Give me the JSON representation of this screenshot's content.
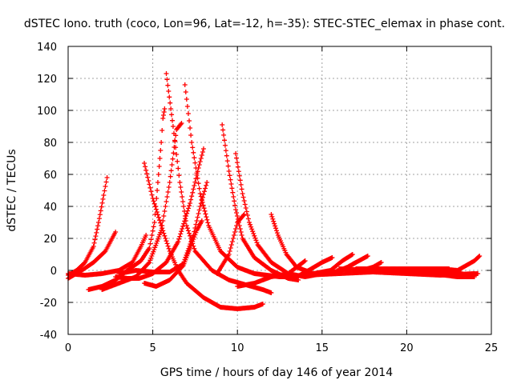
{
  "chart_data": {
    "type": "scatter",
    "title": "dSTEC Iono. truth (coco, Lon=96, Lat=-12, h=-35): STEC-STEC_elemax in phase cont.",
    "xlabel": "GPS time / hours of day 146 of year 2014",
    "ylabel": "dSTEC  / TECUs",
    "xlim": [
      0,
      25
    ],
    "ylim": [
      -40,
      140
    ],
    "xticks": [
      0,
      5,
      10,
      15,
      20,
      25
    ],
    "yticks": [
      -40,
      -20,
      0,
      20,
      40,
      60,
      80,
      100,
      120,
      140
    ],
    "grid": true,
    "legend": "none",
    "marker": "plus",
    "series_color": "#ff0000",
    "series": [
      {
        "points": [
          [
            0,
            -3
          ],
          [
            0.5,
            0
          ],
          [
            1,
            5
          ],
          [
            1.5,
            15
          ],
          [
            1.8,
            30
          ],
          [
            2.1,
            47
          ],
          [
            2.3,
            58
          ]
        ]
      },
      {
        "points": [
          [
            0,
            -5
          ],
          [
            0.8,
            0
          ],
          [
            1.5,
            5
          ],
          [
            2.2,
            12
          ],
          [
            2.8,
            24
          ]
        ]
      },
      {
        "points": [
          [
            0,
            -2
          ],
          [
            1,
            -3
          ],
          [
            2,
            -2
          ],
          [
            3,
            0
          ],
          [
            3.8,
            5
          ],
          [
            4.3,
            15
          ],
          [
            4.6,
            22
          ]
        ]
      },
      {
        "points": [
          [
            1.2,
            -12
          ],
          [
            2,
            -10
          ],
          [
            2.8,
            -6
          ],
          [
            3.5,
            0
          ],
          [
            4.3,
            6
          ],
          [
            4.8,
            14
          ],
          [
            5.1,
            30
          ],
          [
            5.3,
            55
          ],
          [
            5.5,
            80
          ],
          [
            5.6,
            95
          ],
          [
            5.7,
            101
          ]
        ]
      },
      {
        "points": [
          [
            2,
            -12
          ],
          [
            3,
            -8
          ],
          [
            4,
            -4
          ],
          [
            4.8,
            5
          ],
          [
            5.5,
            25
          ],
          [
            6,
            55
          ],
          [
            6.4,
            88
          ],
          [
            6.7,
            92
          ]
        ]
      },
      {
        "points": [
          [
            2.8,
            -4
          ],
          [
            3.5,
            -5
          ],
          [
            4.2,
            -5
          ],
          [
            5,
            -2
          ],
          [
            5.8,
            5
          ],
          [
            6.5,
            18
          ],
          [
            7.2,
            42
          ],
          [
            7.7,
            64
          ],
          [
            8,
            76
          ]
        ]
      },
      {
        "points": [
          [
            3,
            -2
          ],
          [
            4,
            0
          ],
          [
            5,
            -1
          ],
          [
            6,
            -1
          ],
          [
            6.8,
            4
          ],
          [
            7.4,
            22
          ],
          [
            7.8,
            40
          ],
          [
            8.2,
            55
          ]
        ]
      },
      {
        "points": [
          [
            4.5,
            -8
          ],
          [
            5.2,
            -10
          ],
          [
            6,
            -6
          ],
          [
            6.8,
            3
          ],
          [
            7.2,
            14
          ],
          [
            7.6,
            25
          ],
          [
            7.9,
            31
          ]
        ]
      },
      {
        "points": [
          [
            4.5,
            67
          ],
          [
            5,
            45
          ],
          [
            5.5,
            28
          ],
          [
            6,
            12
          ],
          [
            6.5,
            0
          ],
          [
            7,
            -8
          ],
          [
            8,
            -17
          ],
          [
            9,
            -23
          ],
          [
            10,
            -24
          ],
          [
            11,
            -23
          ],
          [
            11.5,
            -21
          ]
        ]
      },
      {
        "points": [
          [
            5.8,
            123
          ],
          [
            6.2,
            90
          ],
          [
            6.6,
            55
          ],
          [
            7,
            28
          ],
          [
            7.5,
            12
          ],
          [
            8.5,
            0
          ],
          [
            9.5,
            -6
          ],
          [
            10.5,
            -9
          ],
          [
            11.5,
            -12
          ],
          [
            12,
            -14
          ]
        ]
      },
      {
        "points": [
          [
            6.9,
            116
          ],
          [
            7.3,
            80
          ],
          [
            7.8,
            48
          ],
          [
            8.3,
            28
          ],
          [
            9,
            12
          ],
          [
            10,
            2
          ],
          [
            11,
            -2
          ],
          [
            12.5,
            -4
          ],
          [
            13.5,
            -4
          ]
        ]
      },
      {
        "points": [
          [
            9.1,
            91
          ],
          [
            9.5,
            62
          ],
          [
            9.9,
            38
          ],
          [
            10.3,
            20
          ],
          [
            11,
            8
          ],
          [
            12,
            0
          ],
          [
            13,
            -5
          ],
          [
            13.6,
            -6
          ]
        ]
      },
      {
        "points": [
          [
            9.9,
            73
          ],
          [
            10.3,
            48
          ],
          [
            10.7,
            30
          ],
          [
            11.2,
            16
          ],
          [
            12,
            5
          ],
          [
            13,
            -2
          ],
          [
            14,
            -4
          ],
          [
            15,
            -2
          ]
        ]
      },
      {
        "points": [
          [
            12,
            35
          ],
          [
            12.4,
            22
          ],
          [
            12.9,
            10
          ],
          [
            13.5,
            2
          ],
          [
            14.5,
            -2
          ],
          [
            15.5,
            -2
          ],
          [
            16.5,
            2
          ],
          [
            17,
            5
          ]
        ]
      },
      {
        "points": [
          [
            8.8,
            -2
          ],
          [
            9.5,
            10
          ],
          [
            10,
            30
          ],
          [
            10.4,
            35
          ]
        ]
      },
      {
        "points": [
          [
            10,
            -10
          ],
          [
            11,
            -8
          ],
          [
            12,
            -4
          ],
          [
            13,
            -2
          ],
          [
            14,
            6
          ]
        ]
      },
      {
        "points": [
          [
            13.5,
            -4
          ],
          [
            14.2,
            0
          ],
          [
            15,
            5
          ],
          [
            15.6,
            8
          ]
        ]
      },
      {
        "points": [
          [
            14.5,
            -2
          ],
          [
            15.5,
            0
          ],
          [
            16.2,
            6
          ],
          [
            16.8,
            10
          ]
        ]
      },
      {
        "points": [
          [
            15,
            -2
          ],
          [
            16,
            -1
          ],
          [
            17,
            5
          ],
          [
            17.7,
            9
          ]
        ]
      },
      {
        "points": [
          [
            17,
            -1
          ],
          [
            18,
            2
          ],
          [
            18.5,
            5
          ]
        ]
      },
      {
        "points": [
          [
            14,
            -3
          ],
          [
            16,
            -2
          ],
          [
            18,
            -1
          ],
          [
            20,
            -2
          ],
          [
            22,
            -3
          ],
          [
            24,
            -2
          ]
        ]
      },
      {
        "points": [
          [
            16,
            1
          ],
          [
            18,
            0
          ],
          [
            20,
            -1
          ],
          [
            22,
            -1
          ],
          [
            23.2,
            -1
          ]
        ]
      },
      {
        "points": [
          [
            17,
            1
          ],
          [
            19,
            1
          ],
          [
            21,
            1
          ],
          [
            22.5,
            1
          ]
        ]
      },
      {
        "points": [
          [
            18,
            0
          ],
          [
            20,
            1
          ],
          [
            22,
            1
          ],
          [
            23,
            0
          ],
          [
            24,
            6
          ],
          [
            24.3,
            9
          ]
        ]
      },
      {
        "points": [
          [
            19,
            -1
          ],
          [
            21,
            -2
          ],
          [
            23,
            -3
          ],
          [
            24.2,
            -2
          ]
        ]
      },
      {
        "points": [
          [
            20,
            -2
          ],
          [
            21.5,
            -2
          ],
          [
            23,
            -4
          ],
          [
            24,
            -4
          ]
        ]
      }
    ]
  }
}
